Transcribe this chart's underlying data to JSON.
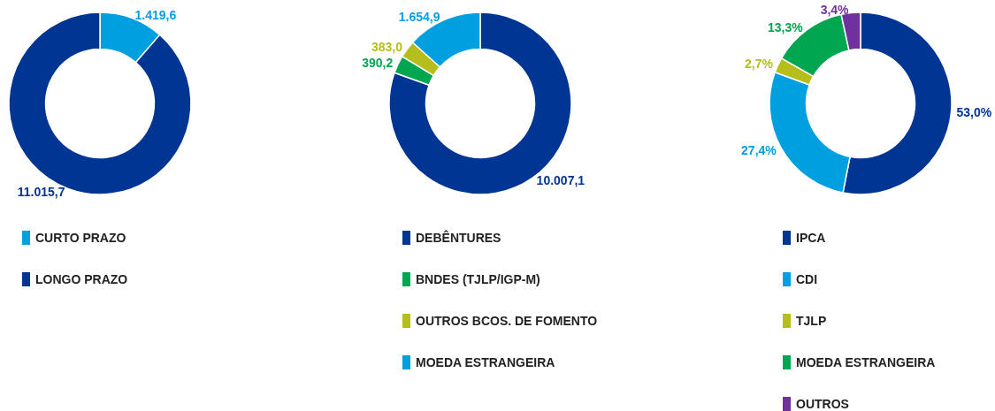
{
  "chart_data": [
    {
      "type": "donut",
      "categories": [
        "CURTO PRAZO",
        "LONGO PRAZO"
      ],
      "values": [
        1419.6,
        11015.7
      ],
      "colors": [
        "#00a0e0",
        "#003594"
      ],
      "value_labels": [
        "1.419,6",
        "11.015,7"
      ],
      "legend": "bottom"
    },
    {
      "type": "donut",
      "categories": [
        "DEBÊNTURES",
        "BNDES (TJLP/IGP-M)",
        "OUTROS BCOS. DE FOMENTO",
        "MOEDA ESTRANGEIRA"
      ],
      "values": [
        10007.1,
        390.2,
        383.0,
        1654.9
      ],
      "colors": [
        "#003594",
        "#00a650",
        "#b5be1a",
        "#00a0e0"
      ],
      "value_labels": [
        "10.007,1",
        "390,2",
        "383,0",
        "1.654,9"
      ],
      "legend": "bottom"
    },
    {
      "type": "donut",
      "categories": [
        "IPCA",
        "CDI",
        "TJLP",
        "MOEDA ESTRANGEIRA",
        "OUTROS"
      ],
      "values": [
        53.0,
        27.4,
        2.7,
        13.3,
        3.4
      ],
      "colors": [
        "#003594",
        "#00a0e0",
        "#b5be1a",
        "#00a650",
        "#7030a0"
      ],
      "value_labels": [
        "53,0%",
        "27,4%",
        "2,7%",
        "13,3%",
        "3,4%"
      ],
      "legend": "bottom"
    }
  ]
}
